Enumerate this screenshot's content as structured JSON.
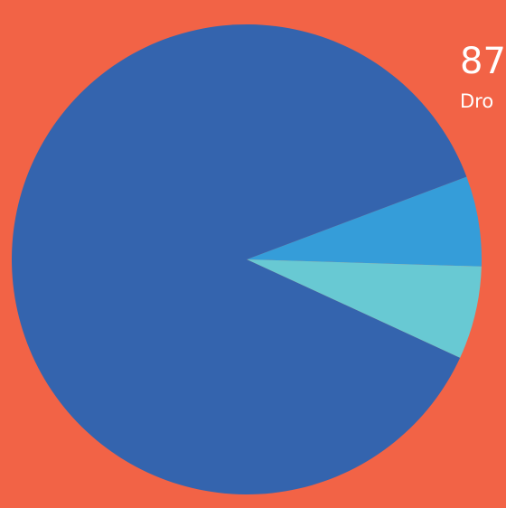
{
  "colors": {
    "background": "#f26346",
    "slice_main": "#3464ae",
    "slice_second": "#359dd9",
    "slice_third": "#68c9d3",
    "text": "#ffffff"
  },
  "stat": {
    "value": "87",
    "label": "Dro"
  },
  "chart_data": {
    "type": "pie",
    "start_angle_deg": -20.6,
    "direction": "clockwise",
    "slices": [
      {
        "value": 6.2,
        "color": "#359dd9"
      },
      {
        "value": 6.4,
        "color": "#68c9d3"
      },
      {
        "value": 87.4,
        "color": "#3464ae"
      }
    ]
  }
}
